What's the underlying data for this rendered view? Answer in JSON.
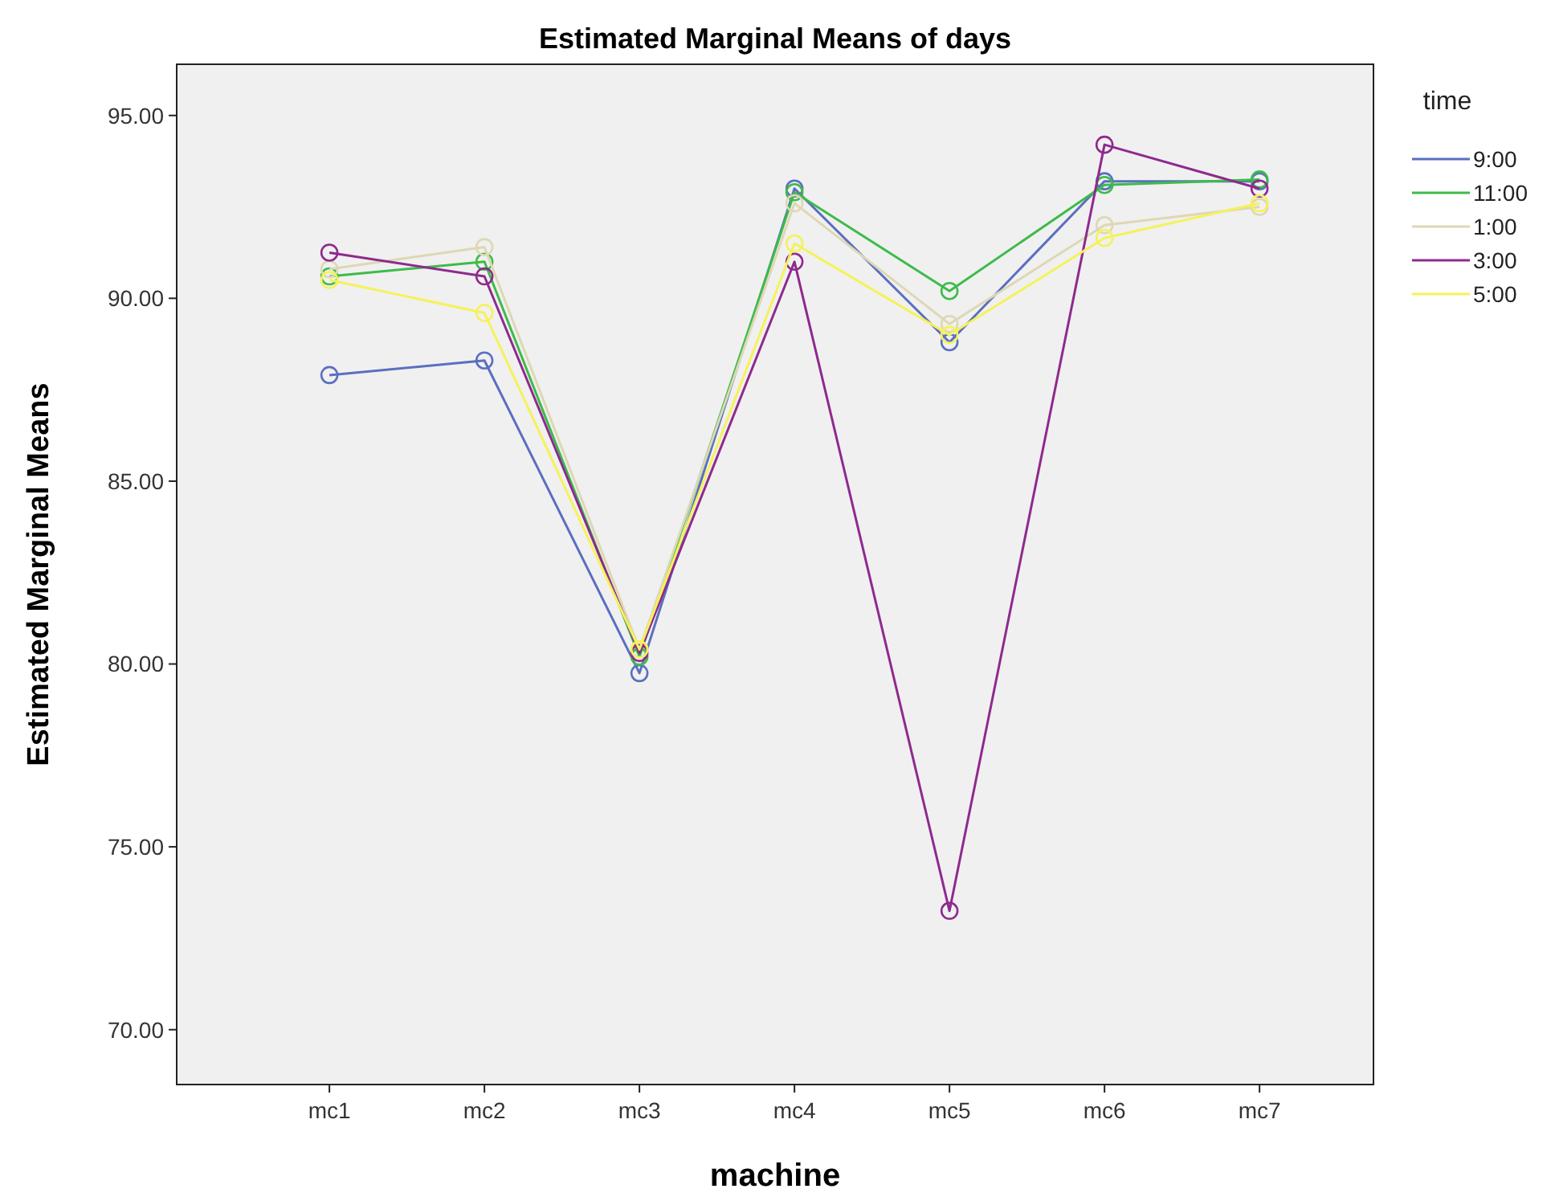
{
  "chart_data": {
    "type": "line",
    "title": "Estimated Marginal Means of days",
    "xlabel": "machine",
    "ylabel": "Estimated Marginal Means",
    "legend_title": "time",
    "categories": [
      "mc1",
      "mc2",
      "mc3",
      "mc4",
      "mc5",
      "mc6",
      "mc7"
    ],
    "series": [
      {
        "name": "9:00",
        "color": "#5a6fc0",
        "values": [
          87.9,
          88.3,
          79.75,
          93.0,
          88.8,
          93.2,
          93.2
        ]
      },
      {
        "name": "11:00",
        "color": "#3dbb4a",
        "values": [
          90.6,
          91.0,
          80.2,
          92.9,
          90.2,
          93.1,
          93.25
        ]
      },
      {
        "name": "1:00",
        "color": "#ddd8b4",
        "values": [
          90.8,
          91.4,
          80.4,
          92.6,
          89.3,
          92.0,
          92.5
        ]
      },
      {
        "name": "3:00",
        "color": "#8e2a8e",
        "values": [
          91.25,
          90.6,
          80.3,
          91.0,
          73.25,
          94.2,
          93.0
        ]
      },
      {
        "name": "5:00",
        "color": "#f5f25a",
        "values": [
          90.5,
          89.6,
          80.4,
          91.5,
          89.0,
          91.65,
          92.6
        ]
      }
    ],
    "ylim": [
      68.5,
      96.4
    ],
    "yticks": [
      {
        "value": 70,
        "label": "70.00"
      },
      {
        "value": 75,
        "label": "75.00"
      },
      {
        "value": 80,
        "label": "80.00"
      },
      {
        "value": 85,
        "label": "85.00"
      },
      {
        "value": 90,
        "label": "90.00"
      },
      {
        "value": 95,
        "label": "95.00"
      }
    ],
    "grid": false,
    "legend": "top right",
    "marker": "circle",
    "line_style": "solid"
  }
}
